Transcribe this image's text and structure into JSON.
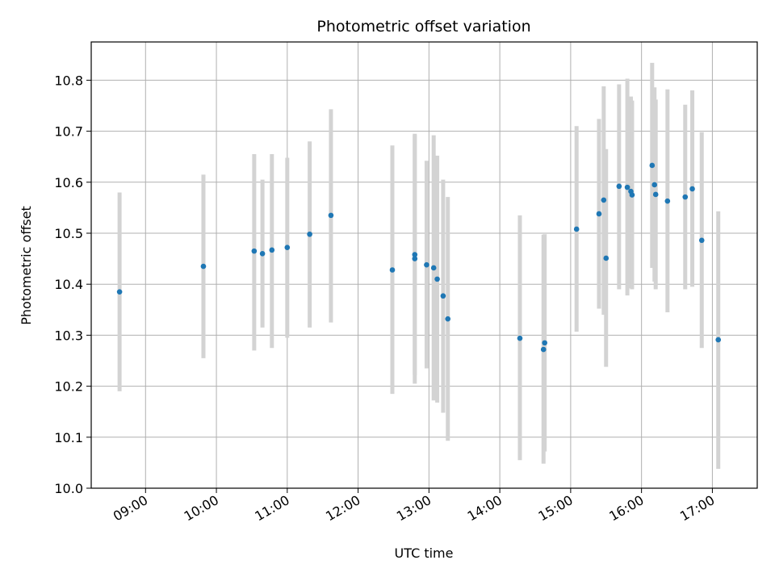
{
  "chart_data": {
    "type": "scatter",
    "title": "Photometric offset variation",
    "xlabel": "UTC time",
    "ylabel": "Photometric offset",
    "xlim": [
      "08:14",
      "17:38"
    ],
    "ylim": [
      10.0,
      10.875
    ],
    "x_ticks": [
      "09:00",
      "10:00",
      "11:00",
      "12:00",
      "13:00",
      "14:00",
      "15:00",
      "16:00",
      "17:00"
    ],
    "y_ticks": [
      10.0,
      10.1,
      10.2,
      10.3,
      10.4,
      10.5,
      10.6,
      10.7,
      10.8
    ],
    "grid": true,
    "colors": {
      "point": "#1f77b4",
      "errorbar": "#d3d3d3",
      "grid": "#b0b0b0"
    },
    "points": [
      {
        "t": "08:38",
        "y": 10.385,
        "lo": 10.19,
        "hi": 10.58
      },
      {
        "t": "09:49",
        "y": 10.435,
        "lo": 10.255,
        "hi": 10.615
      },
      {
        "t": "10:32",
        "y": 10.465,
        "lo": 10.27,
        "hi": 10.655
      },
      {
        "t": "10:39",
        "y": 10.46,
        "lo": 10.315,
        "hi": 10.605
      },
      {
        "t": "10:47",
        "y": 10.467,
        "lo": 10.275,
        "hi": 10.655
      },
      {
        "t": "11:00",
        "y": 10.472,
        "lo": 10.295,
        "hi": 10.648
      },
      {
        "t": "11:19",
        "y": 10.498,
        "lo": 10.315,
        "hi": 10.68
      },
      {
        "t": "11:37",
        "y": 10.535,
        "lo": 10.325,
        "hi": 10.743
      },
      {
        "t": "12:29",
        "y": 10.428,
        "lo": 10.185,
        "hi": 10.672
      },
      {
        "t": "12:48",
        "y": 10.458,
        "lo": 10.222,
        "hi": 10.695
      },
      {
        "t": "12:48",
        "y": 10.45,
        "lo": 10.205,
        "hi": 10.693
      },
      {
        "t": "12:58",
        "y": 10.438,
        "lo": 10.235,
        "hi": 10.642
      },
      {
        "t": "13:04",
        "y": 10.432,
        "lo": 10.172,
        "hi": 10.692
      },
      {
        "t": "13:07",
        "y": 10.41,
        "lo": 10.168,
        "hi": 10.652
      },
      {
        "t": "13:12",
        "y": 10.377,
        "lo": 10.148,
        "hi": 10.605
      },
      {
        "t": "13:16",
        "y": 10.332,
        "lo": 10.093,
        "hi": 10.571
      },
      {
        "t": "14:17",
        "y": 10.294,
        "lo": 10.055,
        "hi": 10.535
      },
      {
        "t": "14:37",
        "y": 10.272,
        "lo": 10.048,
        "hi": 10.497
      },
      {
        "t": "14:38",
        "y": 10.285,
        "lo": 10.072,
        "hi": 10.498
      },
      {
        "t": "15:05",
        "y": 10.508,
        "lo": 10.307,
        "hi": 10.71
      },
      {
        "t": "15:24",
        "y": 10.538,
        "lo": 10.352,
        "hi": 10.724
      },
      {
        "t": "15:28",
        "y": 10.565,
        "lo": 10.34,
        "hi": 10.788
      },
      {
        "t": "15:30",
        "y": 10.451,
        "lo": 10.238,
        "hi": 10.665
      },
      {
        "t": "15:41",
        "y": 10.592,
        "lo": 10.39,
        "hi": 10.792
      },
      {
        "t": "15:48",
        "y": 10.59,
        "lo": 10.378,
        "hi": 10.803
      },
      {
        "t": "15:51",
        "y": 10.582,
        "lo": 10.392,
        "hi": 10.768
      },
      {
        "t": "15:52",
        "y": 10.575,
        "lo": 10.39,
        "hi": 10.76
      },
      {
        "t": "16:09",
        "y": 10.633,
        "lo": 10.432,
        "hi": 10.834
      },
      {
        "t": "16:11",
        "y": 10.595,
        "lo": 10.405,
        "hi": 10.786
      },
      {
        "t": "16:12",
        "y": 10.576,
        "lo": 10.39,
        "hi": 10.762
      },
      {
        "t": "16:22",
        "y": 10.563,
        "lo": 10.345,
        "hi": 10.782
      },
      {
        "t": "16:37",
        "y": 10.571,
        "lo": 10.39,
        "hi": 10.752
      },
      {
        "t": "16:43",
        "y": 10.587,
        "lo": 10.395,
        "hi": 10.78
      },
      {
        "t": "16:51",
        "y": 10.486,
        "lo": 10.275,
        "hi": 10.698
      },
      {
        "t": "17:05",
        "y": 10.291,
        "lo": 10.038,
        "hi": 10.543
      }
    ]
  }
}
